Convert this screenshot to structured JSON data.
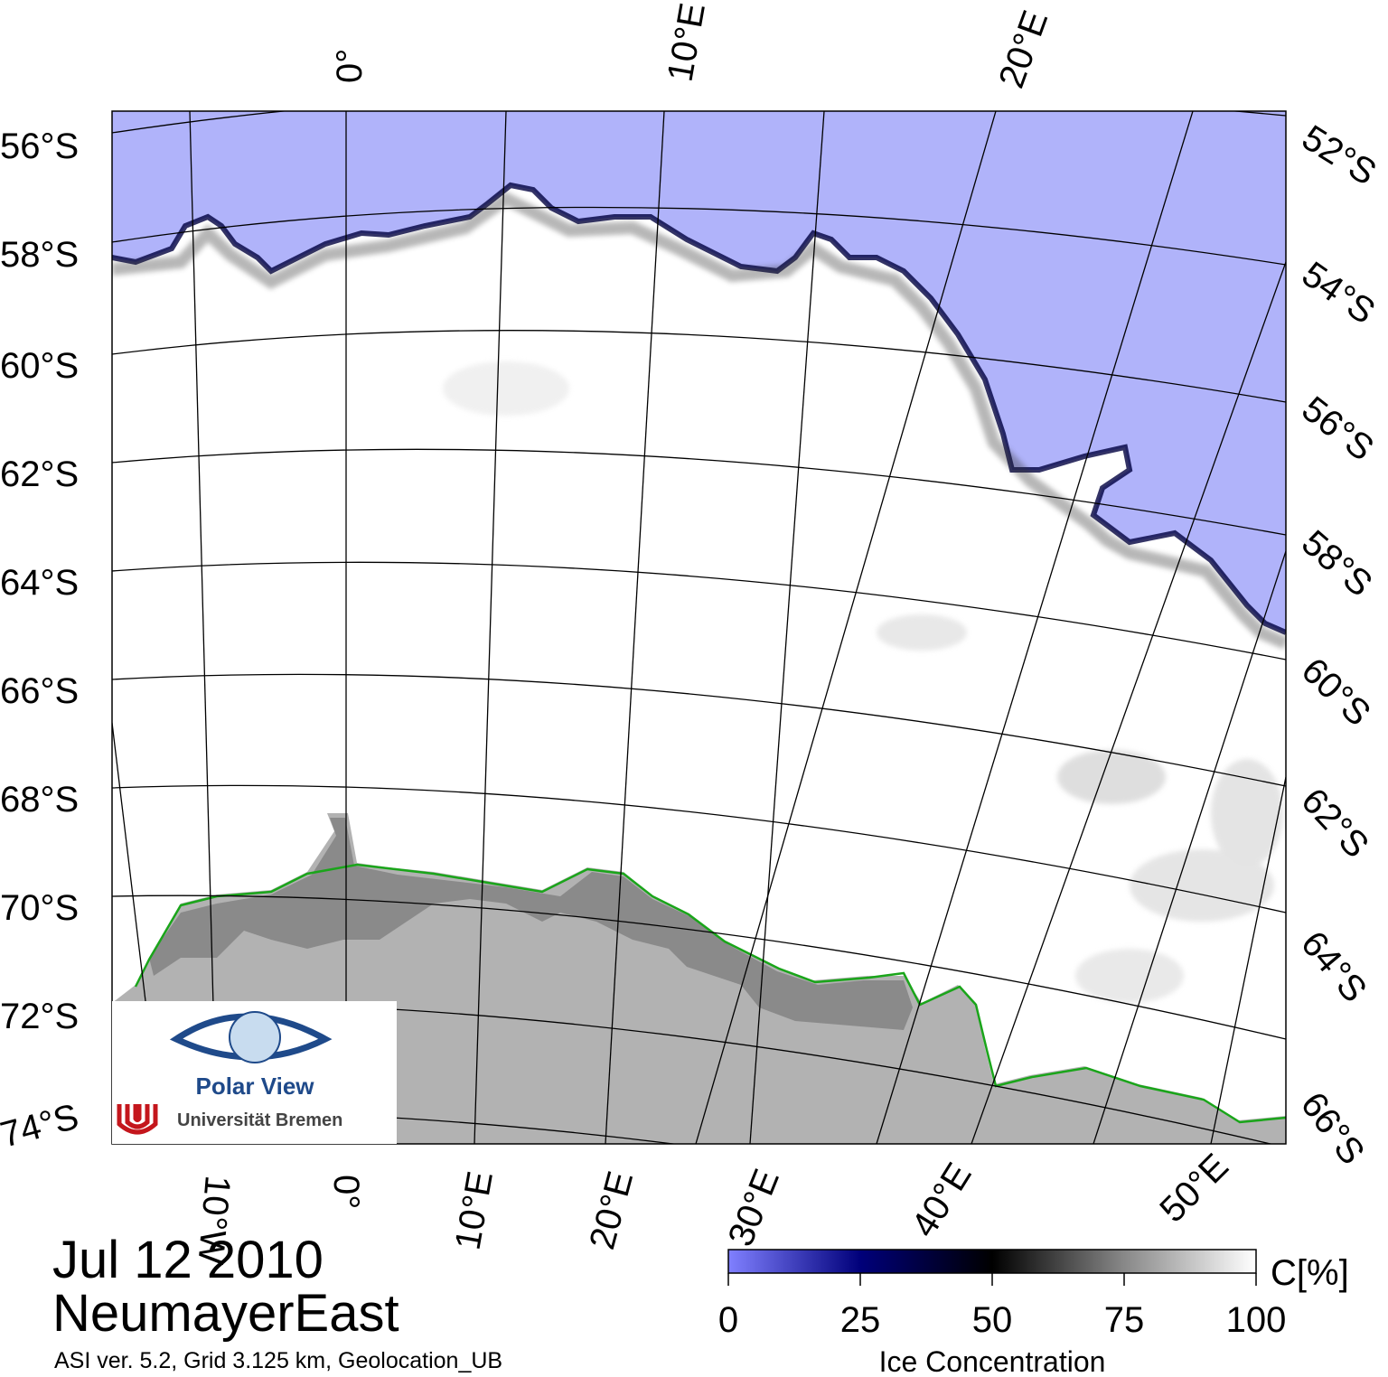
{
  "map": {
    "date": "Jul 12 2010",
    "region": "NeumayerEast",
    "footnote": "ASI ver. 5.2,  Grid 3.125 km, Geolocation_UB",
    "left_lat_labels": [
      "56°S",
      "58°S",
      "60°S",
      "62°S",
      "64°S",
      "66°S",
      "68°S",
      "70°S",
      "72°S",
      "74°S"
    ],
    "right_lat_labels": [
      "52°S",
      "54°S",
      "56°S",
      "58°S",
      "60°S",
      "62°S",
      "64°S",
      "66°S"
    ],
    "top_lon_labels": [
      "0°",
      "10°E",
      "20°E"
    ],
    "bottom_lon_labels": [
      "10°W",
      "0°",
      "10°E",
      "20°E",
      "30°E",
      "40°E",
      "50°E"
    ],
    "colors": {
      "open_water": "#b0b3fa",
      "ice_high": "#ffffff",
      "ice_edge": "#000040",
      "land": "#b2b2b2",
      "ice_shelf": "#8a8a8a",
      "coastline": "#1aa51a",
      "graticule": "#000000"
    }
  },
  "colorbar": {
    "unit_label": "C[%]",
    "title": "Ice Concentration",
    "ticks": [
      "0",
      "25",
      "50",
      "75",
      "100"
    ]
  },
  "logo": {
    "name": "Polar View",
    "institution": "Universität Bremen"
  }
}
